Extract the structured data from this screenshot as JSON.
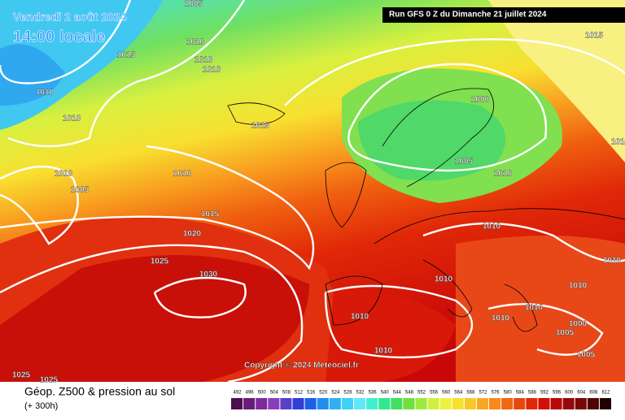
{
  "header": {
    "date": "Vendredi 2 août 2024",
    "time": "14:00 locale",
    "run": "Run GFS 0 Z du Dimanche 21 juillet 2024"
  },
  "isobar_labels": [
    "1005",
    "1010",
    "1015",
    "1010",
    "1010",
    "1010",
    "1010",
    "1015",
    "1015",
    "1000",
    "1010",
    "1005",
    "1010",
    "1005",
    "1010",
    "1015",
    "1020",
    "1010",
    "1025",
    "1030",
    "1010",
    "1010",
    "1010",
    "1010",
    "1010",
    "1010",
    "1000",
    "1005",
    "1010",
    "1005",
    "1025",
    "1025",
    "1010"
  ],
  "copyright": "Copyright © 2024 Meteociel.fr",
  "footer": {
    "title": "Géop. Z500 & pression au sol",
    "subtitle": "(+ 300h)"
  },
  "scale": {
    "labels": [
      "492",
      "496",
      "500",
      "504",
      "508",
      "512",
      "516",
      "520",
      "524",
      "528",
      "532",
      "536",
      "540",
      "544",
      "548",
      "552",
      "556",
      "560",
      "564",
      "568",
      "572",
      "576",
      "580",
      "584",
      "588",
      "592",
      "596",
      "600",
      "604",
      "608",
      "612"
    ],
    "colors": [
      "#4b0f4b",
      "#6a1a7a",
      "#7e2a9a",
      "#8a3fb8",
      "#5a3fc8",
      "#2f3fd8",
      "#1f5fe8",
      "#1f8fef",
      "#2fb0f0",
      "#40d0f8",
      "#60e8f8",
      "#40f0d0",
      "#30e890",
      "#40e060",
      "#70e040",
      "#a0ea40",
      "#d0f040",
      "#f0f040",
      "#f8e030",
      "#f8c828",
      "#f8a820",
      "#f88818",
      "#f06810",
      "#e84810",
      "#e02808",
      "#d01008",
      "#b80808",
      "#980808",
      "#780808",
      "#500404",
      "#200000"
    ]
  }
}
